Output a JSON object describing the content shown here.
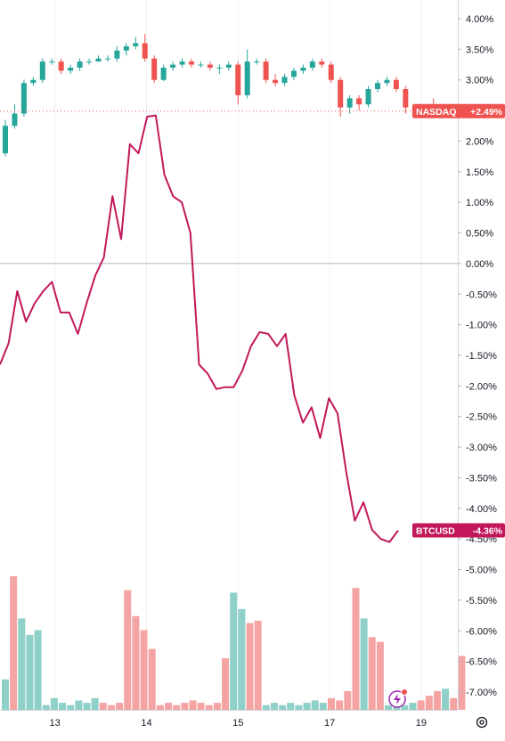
{
  "chart_data": {
    "type": "line",
    "title": "",
    "percent_axis": {
      "ticks": [
        "4.00%",
        "3.50%",
        "3.00%",
        "2.50%",
        "2.00%",
        "1.50%",
        "1.00%",
        "0.50%",
        "0.00%",
        "-0.50%",
        "-1.00%",
        "-1.50%",
        "-2.00%",
        "-2.50%",
        "-3.00%",
        "-3.50%",
        "-4.00%",
        "-4.50%",
        "-5.00%",
        "-5.50%",
        "-6.00%",
        "-6.50%",
        "-7.00%"
      ],
      "tick_values": [
        4,
        3.5,
        3,
        2.5,
        2,
        1.5,
        1,
        0.5,
        0,
        -0.5,
        -1,
        -1.5,
        -2,
        -2.5,
        -3,
        -3.5,
        -4,
        -4.5,
        -5,
        -5.5,
        -6,
        -6.5,
        -7
      ],
      "range": [
        -7.2,
        4.15
      ]
    },
    "time_axis": {
      "ticks": [
        "13",
        "14",
        "15",
        "17",
        "19"
      ],
      "tick_positions": [
        6,
        16,
        26,
        36,
        46
      ],
      "range": [
        0,
        50
      ]
    },
    "series": [
      {
        "name": "NASDAQ",
        "kind": "candlestick",
        "last_label": "+2.49%",
        "color_up": "#26a69a",
        "color_down": "#ef5350",
        "candles": [
          [
            1.8,
            2.25,
            2.35,
            1.75
          ],
          [
            2.25,
            2.45,
            2.6,
            2.2
          ],
          [
            2.45,
            2.95,
            3.0,
            2.4
          ],
          [
            2.95,
            3.0,
            3.05,
            2.9
          ],
          [
            3.0,
            3.3,
            3.35,
            2.95
          ],
          [
            3.3,
            3.3,
            3.35,
            3.25
          ],
          [
            3.3,
            3.15,
            3.35,
            3.1
          ],
          [
            3.15,
            3.2,
            3.25,
            3.1
          ],
          [
            3.2,
            3.3,
            3.35,
            3.15
          ],
          [
            3.3,
            3.3,
            3.35,
            3.25
          ],
          [
            3.3,
            3.35,
            3.4,
            3.3
          ],
          [
            3.35,
            3.35,
            3.4,
            3.3
          ],
          [
            3.35,
            3.48,
            3.55,
            3.3
          ],
          [
            3.48,
            3.55,
            3.6,
            3.4
          ],
          [
            3.55,
            3.6,
            3.7,
            3.5
          ],
          [
            3.6,
            3.35,
            3.75,
            3.3
          ],
          [
            3.35,
            3.0,
            3.4,
            2.95
          ],
          [
            3.0,
            3.2,
            3.25,
            2.98
          ],
          [
            3.2,
            3.25,
            3.3,
            3.15
          ],
          [
            3.25,
            3.3,
            3.35,
            3.2
          ],
          [
            3.3,
            3.25,
            3.35,
            3.2
          ],
          [
            3.25,
            3.25,
            3.3,
            3.2
          ],
          [
            3.25,
            3.2,
            3.3,
            3.15
          ],
          [
            3.2,
            3.2,
            3.25,
            3.1
          ],
          [
            3.2,
            3.25,
            3.3,
            3.15
          ],
          [
            3.25,
            2.75,
            3.3,
            2.6
          ],
          [
            2.75,
            3.3,
            3.5,
            2.7
          ],
          [
            3.3,
            3.3,
            3.35,
            3.25
          ],
          [
            3.3,
            3.0,
            3.35,
            2.95
          ],
          [
            3.0,
            2.95,
            3.1,
            2.9
          ],
          [
            2.95,
            3.05,
            3.1,
            2.9
          ],
          [
            3.05,
            3.15,
            3.2,
            3.0
          ],
          [
            3.15,
            3.2,
            3.25,
            3.1
          ],
          [
            3.2,
            3.3,
            3.35,
            3.15
          ],
          [
            3.3,
            3.25,
            3.35,
            3.2
          ],
          [
            3.25,
            3.0,
            3.3,
            2.95
          ],
          [
            3.0,
            2.55,
            3.05,
            2.4
          ],
          [
            2.55,
            2.7,
            2.75,
            2.45
          ],
          [
            2.7,
            2.6,
            2.75,
            2.5
          ],
          [
            2.6,
            2.85,
            2.9,
            2.55
          ],
          [
            2.85,
            2.95,
            3.0,
            2.8
          ],
          [
            2.95,
            3.0,
            3.05,
            2.9
          ],
          [
            3.0,
            2.85,
            3.05,
            2.8
          ],
          [
            2.85,
            2.55,
            2.9,
            2.45
          ],
          [
            2.55,
            2.5,
            2.6,
            2.4
          ],
          [
            2.5,
            2.55,
            2.6,
            2.45
          ],
          [
            2.55,
            2.49,
            2.7,
            2.4
          ]
        ]
      },
      {
        "name": "BTCUSD",
        "kind": "line",
        "last_label": "-4.36%",
        "color": "#c2185b",
        "values": [
          -1.65,
          -1.3,
          -0.45,
          -0.95,
          -0.65,
          -0.45,
          -0.3,
          -0.8,
          -0.8,
          -1.15,
          -0.65,
          -0.2,
          0.1,
          1.1,
          0.4,
          1.95,
          1.8,
          2.4,
          2.42,
          1.45,
          1.1,
          1.0,
          0.5,
          -1.65,
          -1.8,
          -2.05,
          -2.02,
          -2.02,
          -1.75,
          -1.35,
          -1.12,
          -1.15,
          -1.35,
          -1.15,
          -2.15,
          -2.6,
          -2.35,
          -2.85,
          -2.2,
          -2.45,
          -3.4,
          -4.2,
          -3.9,
          -4.35,
          -4.5,
          -4.55,
          -4.36
        ]
      },
      {
        "name": "Volume",
        "kind": "histogram",
        "values": [
          1.3,
          5.7,
          3.9,
          3.2,
          3.4,
          0.2,
          0.5,
          0.3,
          0.2,
          0.4,
          0.3,
          0.5,
          0.3,
          0.2,
          0.3,
          5.1,
          4.0,
          3.4,
          2.6,
          0.2,
          0.3,
          0.2,
          0.3,
          0.4,
          0.3,
          0.2,
          0.3,
          2.2,
          5.0,
          4.3,
          3.7,
          3.8,
          0.2,
          0.3,
          0.2,
          0.3,
          0.2,
          0.3,
          0.4,
          0.3,
          0.5,
          0.4,
          0.8,
          5.2,
          3.9,
          3.1,
          2.9,
          0.2,
          0.3,
          0.2,
          0.3,
          0.4,
          0.6,
          0.8,
          0.9,
          0.5,
          2.3
        ],
        "up_down": [
          1,
          0,
          1,
          1,
          1,
          1,
          1,
          1,
          1,
          1,
          1,
          1,
          0,
          0,
          0,
          0,
          0,
          0,
          0,
          0,
          0,
          0,
          0,
          0,
          0,
          0,
          0,
          0,
          1,
          1,
          0,
          0,
          1,
          1,
          1,
          1,
          1,
          1,
          1,
          1,
          0,
          0,
          0,
          0,
          1,
          0,
          0,
          1,
          1,
          1,
          1,
          0,
          0,
          0,
          1,
          0,
          0
        ]
      }
    ],
    "grid": "vertical-only",
    "zero_line": true
  },
  "ui": {
    "settings_icon": "gear-icon",
    "replay_icon": "lightning-icon",
    "colors": {
      "nasdaq_tag": "#ef5350",
      "btc_tag": "#c2185b",
      "up": "#26a69a",
      "down": "#ef5350",
      "volume_up": "#8fd0c8",
      "volume_down": "#f4a5a3"
    }
  }
}
